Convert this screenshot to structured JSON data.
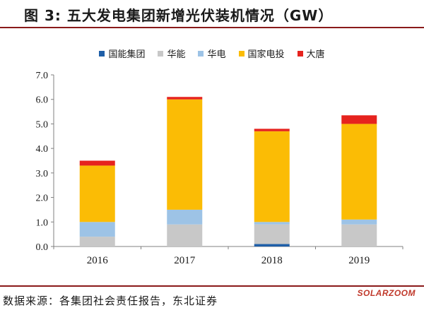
{
  "figure": {
    "title": "图  3:  五大发电集团新增光伏装机情况（GW）",
    "source": "数据来源：各集团社会责任报告，东北证券",
    "watermark": "SOLARZOOM"
  },
  "colors": {
    "rule": "#8a1a1a",
    "axis": "#808080",
    "text": "#1a1a1a"
  },
  "chart_data": {
    "type": "bar",
    "stacked": true,
    "categories": [
      "2016",
      "2017",
      "2018",
      "2019"
    ],
    "series": [
      {
        "name": "国能集团",
        "color": "#1f5fa8",
        "values": [
          0.0,
          0.0,
          0.1,
          0.0
        ]
      },
      {
        "name": "华能",
        "color": "#c8c8c8",
        "values": [
          0.4,
          0.9,
          0.8,
          0.9
        ]
      },
      {
        "name": "华电",
        "color": "#9dc3e6",
        "values": [
          0.6,
          0.6,
          0.1,
          0.2
        ]
      },
      {
        "name": "国家电投",
        "color": "#fbbc05",
        "values": [
          2.3,
          4.5,
          3.7,
          3.9
        ]
      },
      {
        "name": "大唐",
        "color": "#e6231e",
        "values": [
          0.2,
          0.1,
          0.1,
          0.35
        ]
      }
    ],
    "ylim": [
      0,
      7
    ],
    "yticks": [
      "0.0",
      "1.0",
      "2.0",
      "3.0",
      "4.0",
      "5.0",
      "6.0",
      "7.0"
    ],
    "grid": false,
    "legend_position": "top"
  }
}
